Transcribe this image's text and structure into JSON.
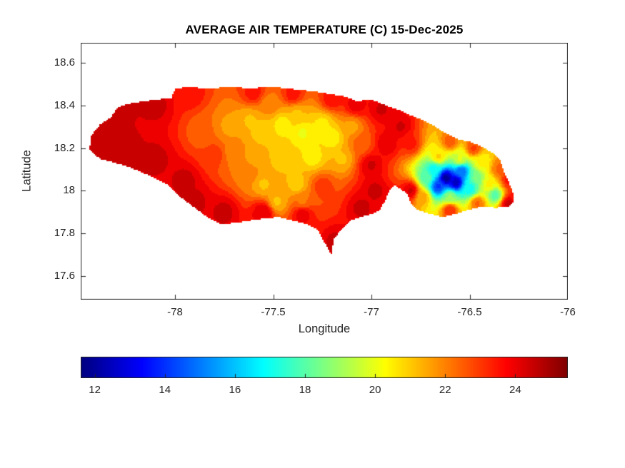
{
  "chart_data": {
    "type": "heatmap",
    "subtype": "filled-contour-map",
    "region": "Jamaica",
    "title": "AVERAGE AIR TEMPERATURE (C) 15-Dec-2025",
    "xlabel": "Longitude",
    "ylabel": "Latitude",
    "axes": {
      "xlim": [
        -78.48,
        -76.0
      ],
      "ylim": [
        17.49,
        18.693
      ],
      "box": true,
      "tick_color": "#262626",
      "axis_color": "#262626",
      "background": "#ffffff"
    },
    "x_ticks": {
      "values": [
        -78,
        -77.5,
        -77,
        -76.5,
        -76
      ],
      "labels": [
        "-78",
        "-77.5",
        "-77",
        "-76.5",
        "-76"
      ]
    },
    "y_ticks": {
      "values": [
        17.6,
        17.8,
        18.0,
        18.2,
        18.4,
        18.6
      ],
      "labels": [
        "17.6",
        "17.8",
        "18",
        "18.2",
        "18.4",
        "18.6"
      ]
    },
    "colorbar": {
      "orientation": "horizontal",
      "colormap": "jet",
      "range": [
        11.6,
        25.5
      ],
      "tick_values": [
        12,
        14,
        16,
        18,
        20,
        22,
        24
      ],
      "tick_labels": [
        "12",
        "14",
        "16",
        "18",
        "20",
        "22",
        "24"
      ]
    },
    "contour_interval_c": 0.5,
    "outline_lonlat": [
      [
        -78.436,
        18.193
      ],
      [
        -78.425,
        18.26
      ],
      [
        -78.382,
        18.31
      ],
      [
        -78.327,
        18.343
      ],
      [
        -78.291,
        18.393
      ],
      [
        -78.218,
        18.41
      ],
      [
        -78.109,
        18.426
      ],
      [
        -78.018,
        18.433
      ],
      [
        -78.0,
        18.477
      ],
      [
        -77.927,
        18.487
      ],
      [
        -77.836,
        18.477
      ],
      [
        -77.727,
        18.487
      ],
      [
        -77.618,
        18.48
      ],
      [
        -77.509,
        18.487
      ],
      [
        -77.364,
        18.473
      ],
      [
        -77.255,
        18.46
      ],
      [
        -77.145,
        18.443
      ],
      [
        -77.073,
        18.42
      ],
      [
        -77.0,
        18.427
      ],
      [
        -76.927,
        18.4
      ],
      [
        -76.855,
        18.377
      ],
      [
        -76.8,
        18.353
      ],
      [
        -76.745,
        18.333
      ],
      [
        -76.691,
        18.31
      ],
      [
        -76.636,
        18.277
      ],
      [
        -76.564,
        18.243
      ],
      [
        -76.491,
        18.227
      ],
      [
        -76.447,
        18.21
      ],
      [
        -76.382,
        18.177
      ],
      [
        -76.345,
        18.143
      ],
      [
        -76.327,
        18.093
      ],
      [
        -76.302,
        18.043
      ],
      [
        -76.28,
        17.993
      ],
      [
        -76.273,
        17.953
      ],
      [
        -76.302,
        17.927
      ],
      [
        -76.364,
        17.92
      ],
      [
        -76.436,
        17.927
      ],
      [
        -76.509,
        17.91
      ],
      [
        -76.564,
        17.893
      ],
      [
        -76.636,
        17.877
      ],
      [
        -76.709,
        17.893
      ],
      [
        -76.764,
        17.91
      ],
      [
        -76.8,
        17.943
      ],
      [
        -76.818,
        17.987
      ],
      [
        -76.855,
        18.01
      ],
      [
        -76.88,
        18.027
      ],
      [
        -76.909,
        18.003
      ],
      [
        -76.927,
        17.96
      ],
      [
        -76.956,
        17.91
      ],
      [
        -77.0,
        17.89
      ],
      [
        -77.055,
        17.877
      ],
      [
        -77.109,
        17.86
      ],
      [
        -77.145,
        17.827
      ],
      [
        -77.189,
        17.777
      ],
      [
        -77.204,
        17.703
      ],
      [
        -77.247,
        17.77
      ],
      [
        -77.273,
        17.817
      ],
      [
        -77.327,
        17.843
      ],
      [
        -77.4,
        17.86
      ],
      [
        -77.473,
        17.877
      ],
      [
        -77.545,
        17.87
      ],
      [
        -77.618,
        17.86
      ],
      [
        -77.691,
        17.85
      ],
      [
        -77.764,
        17.843
      ],
      [
        -77.836,
        17.877
      ],
      [
        -77.909,
        17.927
      ],
      [
        -77.982,
        17.977
      ],
      [
        -78.036,
        18.027
      ],
      [
        -78.109,
        18.06
      ],
      [
        -78.182,
        18.093
      ],
      [
        -78.255,
        18.117
      ],
      [
        -78.327,
        18.137
      ],
      [
        -78.382,
        18.15
      ]
    ],
    "samples_lon_lat_tempC": [
      [
        -78.4,
        18.28,
        24.4
      ],
      [
        -78.3,
        18.38,
        24.4
      ],
      [
        -78.1,
        18.4,
        24.4
      ],
      [
        -78.25,
        18.2,
        24.4
      ],
      [
        -78.1,
        18.15,
        24.4
      ],
      [
        -77.95,
        18.05,
        24.4
      ],
      [
        -77.9,
        17.95,
        24.4
      ],
      [
        -77.75,
        17.9,
        24.4
      ],
      [
        -77.55,
        17.9,
        24.2
      ],
      [
        -77.35,
        17.89,
        24.0
      ],
      [
        -77.18,
        17.76,
        24.4
      ],
      [
        -77.05,
        17.92,
        24.4
      ],
      [
        -76.88,
        17.95,
        24.4
      ],
      [
        -76.8,
        18.0,
        24.3
      ],
      [
        -76.3,
        17.94,
        24.4
      ],
      [
        -76.28,
        18.1,
        24.3
      ],
      [
        -76.95,
        18.38,
        24.3
      ],
      [
        -77.08,
        18.4,
        24.0
      ],
      [
        -76.85,
        18.3,
        24.3
      ],
      [
        -77.0,
        18.12,
        24.3
      ],
      [
        -76.92,
        18.22,
        24.2
      ],
      [
        -76.98,
        18.0,
        24.4
      ],
      [
        -77.92,
        18.45,
        23.5
      ],
      [
        -77.6,
        18.46,
        23.5
      ],
      [
        -77.4,
        18.45,
        23.5
      ],
      [
        -77.2,
        18.43,
        23.6
      ],
      [
        -76.8,
        18.22,
        23.4
      ],
      [
        -76.3,
        18.05,
        23.4
      ],
      [
        -76.26,
        17.97,
        23.6
      ],
      [
        -77.25,
        18.02,
        23.0
      ],
      [
        -77.85,
        18.28,
        22.3
      ],
      [
        -77.72,
        18.3,
        21.6
      ],
      [
        -77.62,
        18.33,
        21.2
      ],
      [
        -77.55,
        18.28,
        20.8
      ],
      [
        -77.45,
        18.31,
        20.4
      ],
      [
        -77.35,
        18.27,
        20.2
      ],
      [
        -77.25,
        18.31,
        20.6
      ],
      [
        -77.38,
        18.36,
        21.2
      ],
      [
        -77.52,
        18.4,
        22.0
      ],
      [
        -77.2,
        18.25,
        20.4
      ],
      [
        -77.1,
        18.3,
        21.6
      ],
      [
        -77.15,
        18.15,
        21.2
      ],
      [
        -77.3,
        18.16,
        20.5
      ],
      [
        -77.45,
        18.16,
        20.8
      ],
      [
        -77.58,
        18.16,
        21.4
      ],
      [
        -77.7,
        18.18,
        22.0
      ],
      [
        -77.55,
        18.03,
        21.2
      ],
      [
        -77.48,
        17.95,
        21.2
      ],
      [
        -77.38,
        18.03,
        21.0
      ],
      [
        -77.62,
        18.08,
        22.0
      ],
      [
        -77.8,
        18.17,
        23.0
      ],
      [
        -77.35,
        17.95,
        22.2
      ],
      [
        -77.05,
        18.22,
        22.5
      ],
      [
        -76.62,
        18.06,
        12.0
      ],
      [
        -76.57,
        18.04,
        12.5
      ],
      [
        -76.66,
        18.02,
        14.2
      ],
      [
        -76.54,
        18.09,
        14.8
      ],
      [
        -76.68,
        18.1,
        17.0
      ],
      [
        -76.5,
        18.01,
        17.0
      ],
      [
        -76.6,
        17.97,
        18.8
      ],
      [
        -76.72,
        18.06,
        18.0
      ],
      [
        -76.47,
        18.06,
        18.3
      ],
      [
        -76.44,
        18.13,
        20.3
      ],
      [
        -76.55,
        18.15,
        19.8
      ],
      [
        -76.66,
        18.16,
        20.8
      ],
      [
        -76.74,
        17.97,
        21.5
      ],
      [
        -76.6,
        17.91,
        23.2
      ],
      [
        -76.46,
        17.94,
        22.3
      ],
      [
        -76.4,
        18.03,
        20.3
      ],
      [
        -76.35,
        18.1,
        22.3
      ],
      [
        -76.37,
        17.98,
        18.0
      ],
      [
        -76.48,
        18.2,
        22.8
      ],
      [
        -76.6,
        18.23,
        22.5
      ]
    ]
  }
}
